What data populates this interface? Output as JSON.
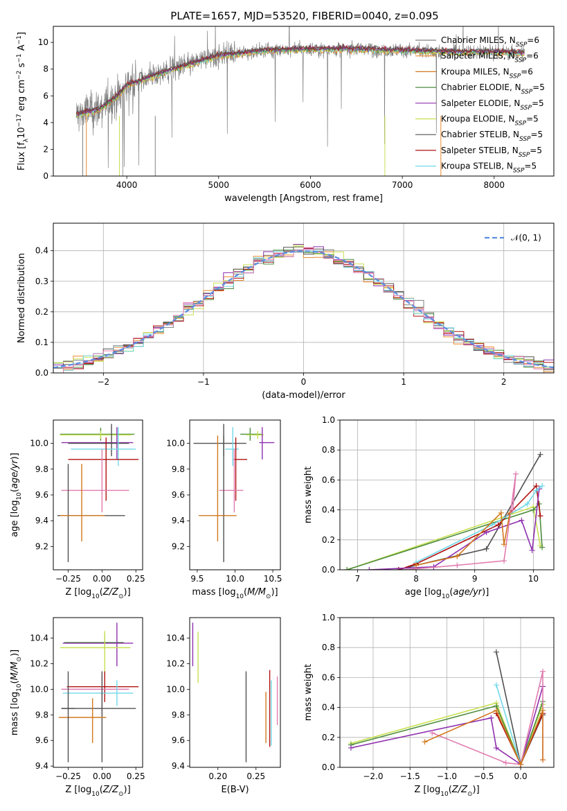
{
  "figure": {
    "title": "PLATE=1657, MJD=53520, FIBERID=0040, z=0.095"
  },
  "colors": {
    "Chabrier MILES": "#808080",
    "Salpeter MILES": "#e8882a",
    "Kroupa MILES": "#d2781e",
    "Chabrier ELODIE": "#4c8c3c",
    "Salpeter ELODIE": "#8e2fae",
    "Kroupa ELODIE": "#c8e050",
    "Chabrier STELIB": "#505050",
    "Salpeter STELIB": "#b01010",
    "Kroupa STELIB": "#70d8e8",
    "pink": "#e07aae",
    "normal": "#5b8ce0"
  },
  "chart_data": [
    {
      "id": "spectrum",
      "type": "line",
      "title": "PLATE=1657, MJD=53520, FIBERID=0040, z=0.095",
      "xlabel": "wavelength [Angstrom, rest frame]",
      "ylabel": "Flux [f_λ 10^-17 erg cm^-2 s^-1 A^-1]",
      "xlim": [
        3200,
        8650
      ],
      "ylim": [
        0,
        11.2
      ],
      "xticks": [
        4000,
        5000,
        6000,
        7000,
        8000
      ],
      "yticks": [
        0,
        2,
        4,
        6,
        8,
        10
      ],
      "legend_position": "right",
      "legend": [
        {
          "name": "Chabrier MILES",
          "sub": "SSP",
          "n": "6"
        },
        {
          "name": "Salpeter MILES",
          "sub": "SSP",
          "n": "6"
        },
        {
          "name": "Kroupa MILES",
          "sub": "SSP",
          "n": "6"
        },
        {
          "name": "Chabrier ELODIE",
          "sub": "SSP",
          "n": "5"
        },
        {
          "name": "Salpeter ELODIE",
          "sub": "SSP",
          "n": "5"
        },
        {
          "name": "Kroupa ELODIE",
          "sub": "SSP",
          "n": "5"
        },
        {
          "name": "Chabrier STELIB",
          "sub": "SSP",
          "n": "5"
        },
        {
          "name": "Salpeter STELIB",
          "sub": "SSP",
          "n": "5"
        },
        {
          "name": "Kroupa STELIB",
          "sub": "SSP",
          "n": "5"
        }
      ],
      "data_range": [
        3450,
        8330
      ],
      "continuum": [
        [
          3450,
          4.6
        ],
        [
          3700,
          5.0
        ],
        [
          3900,
          6.0
        ],
        [
          4000,
          6.8
        ],
        [
          4500,
          8.0
        ],
        [
          5000,
          9.0
        ],
        [
          5500,
          9.4
        ],
        [
          6000,
          9.5
        ],
        [
          6500,
          9.5
        ],
        [
          7000,
          9.4
        ],
        [
          7500,
          9.3
        ],
        [
          8000,
          9.3
        ],
        [
          8300,
          9.2
        ]
      ]
    },
    {
      "id": "residuals",
      "type": "histogram",
      "xlabel": "(data-model)/error",
      "ylabel": "Normed distribution",
      "xlim": [
        -2.5,
        2.5
      ],
      "ylim": [
        0,
        0.49
      ],
      "xticks": [
        -2,
        -1,
        0,
        1,
        2
      ],
      "yticks": [
        0.0,
        0.1,
        0.2,
        0.3,
        0.4
      ],
      "grid": true,
      "bin_width": 0.1,
      "legend_position": "top-right",
      "reference_curve": {
        "name": "𝒩(0, 1)",
        "style": "dashed"
      },
      "series_colors": [
        "#808080",
        "#e8882a",
        "#4c8c3c",
        "#8e2fae",
        "#c8e050",
        "#505050",
        "#b01010",
        "#70d8e8",
        "#e07aae"
      ]
    },
    {
      "id": "age-vs-Z",
      "type": "errorbar",
      "xlabel": "Z [log10(Z/Z_⊙)]",
      "ylabel": "age  [log10(age/yr)]",
      "xlim": [
        -0.36,
        0.3
      ],
      "ylim": [
        9.02,
        10.18
      ],
      "xticks": [
        -0.25,
        0.0,
        0.25
      ],
      "yticks": [
        9.2,
        9.4,
        9.6,
        9.8,
        10.0
      ],
      "points": [
        {
          "x": -0.01,
          "y": 10.07,
          "xerr": [
            0.3,
            0.25
          ],
          "yerr": [
            0.05,
            0.05
          ],
          "color": "#4c8c3c"
        },
        {
          "x": -0.01,
          "y": 10.065,
          "xerr": [
            0.3,
            0.23
          ],
          "yerr": [
            0.03,
            0.03
          ],
          "color": "#c8e050"
        },
        {
          "x": 0.11,
          "y": 10.005,
          "xerr": [
            0.41,
            0.12
          ],
          "yerr": [
            0.13,
            0.12
          ],
          "color": "#8e2fae"
        },
        {
          "x": 0.07,
          "y": 10.0,
          "xerr": [
            0.32,
            0.13
          ],
          "yerr": [
            0.1,
            0.15
          ],
          "color": "#505050"
        },
        {
          "x": 0.12,
          "y": 9.955,
          "xerr": [
            0.35,
            0.13
          ],
          "yerr": [
            0.13,
            0.17
          ],
          "color": "#70d8e8"
        },
        {
          "x": 0.03,
          "y": 9.875,
          "xerr": [
            0.28,
            0.24
          ],
          "yerr": [
            0.32,
            0.17
          ],
          "color": "#b01010"
        },
        {
          "x": 0.0,
          "y": 9.635,
          "xerr": [
            0.3,
            0.2
          ],
          "yerr": [
            0.17,
            0.32
          ],
          "color": "#e07aae"
        },
        {
          "x": -0.25,
          "y": 9.44,
          "xerr": [
            0.08,
            0.42
          ],
          "yerr": [
            0.36,
            0.4
          ],
          "color": "#505050"
        },
        {
          "x": -0.15,
          "y": 9.44,
          "xerr": [
            0.16,
            0.17
          ],
          "yerr": [
            0.2,
            0.4
          ],
          "color": "#d2781e"
        }
      ]
    },
    {
      "id": "age-vs-mass",
      "type": "errorbar",
      "xlabel": "mass [log10(M/M_⊙)]",
      "ylabel": "",
      "xlim": [
        9.4,
        10.6
      ],
      "ylim": [
        9.02,
        10.18
      ],
      "xticks": [
        9.5,
        10.0,
        10.5
      ],
      "yticks": [
        9.2,
        9.4,
        9.6,
        9.8,
        10.0
      ],
      "points": [
        {
          "x": 10.2,
          "y": 10.07,
          "xerr": [
            0.13,
            0.15
          ],
          "yerr": [
            0.05,
            0.05
          ],
          "color": "#4c8c3c"
        },
        {
          "x": 10.3,
          "y": 10.065,
          "xerr": [
            0.15,
            0.08
          ],
          "yerr": [
            0.03,
            0.03
          ],
          "color": "#c8e050"
        },
        {
          "x": 10.36,
          "y": 10.005,
          "xerr": [
            0.04,
            0.16
          ],
          "yerr": [
            0.13,
            0.12
          ],
          "color": "#8e2fae"
        },
        {
          "x": 9.85,
          "y": 10.0,
          "xerr": [
            0.4,
            0.3
          ],
          "yerr": [
            0.1,
            0.15
          ],
          "color": "#505050"
        },
        {
          "x": 9.97,
          "y": 9.955,
          "xerr": [
            0.1,
            0.08
          ],
          "yerr": [
            0.13,
            0.17
          ],
          "color": "#70d8e8"
        },
        {
          "x": 10.01,
          "y": 9.875,
          "xerr": [
            0.03,
            0.15
          ],
          "yerr": [
            0.32,
            0.17
          ],
          "color": "#b01010"
        },
        {
          "x": 9.99,
          "y": 9.635,
          "xerr": [
            0.2,
            0.12
          ],
          "yerr": [
            0.17,
            0.32
          ],
          "color": "#e07aae"
        },
        {
          "x": 9.85,
          "y": 9.44,
          "xerr": [
            0.03,
            0.03
          ],
          "yerr": [
            0.36,
            0.62
          ],
          "color": "#505050"
        },
        {
          "x": 9.77,
          "y": 9.44,
          "xerr": [
            0.25,
            0.25
          ],
          "yerr": [
            0.2,
            0.62
          ],
          "color": "#d2781e"
        }
      ]
    },
    {
      "id": "massweight-vs-age",
      "type": "line",
      "xlabel": "age  [log10(age/yr)]",
      "ylabel": "mass weight",
      "xlim": [
        6.7,
        10.35
      ],
      "ylim": [
        0,
        1.0
      ],
      "xticks": [
        7,
        8,
        9,
        10
      ],
      "yticks": [
        0.0,
        0.2,
        0.4,
        0.6,
        0.8,
        1.0
      ],
      "grid": true,
      "marker": "+",
      "series": [
        {
          "color": "#c8e050",
          "points": [
            [
              6.82,
              0.0
            ],
            [
              10.0,
              0.42
            ],
            [
              10.12,
              0.16
            ]
          ]
        },
        {
          "color": "#4c8c3c",
          "points": [
            [
              6.82,
              0.0
            ],
            [
              10.0,
              0.4
            ],
            [
              10.1,
              0.44
            ],
            [
              10.15,
              0.15
            ]
          ]
        },
        {
          "color": "#505050",
          "points": [
            [
              7.7,
              0.0
            ],
            [
              8.0,
              0.03
            ],
            [
              9.2,
              0.14
            ],
            [
              10.12,
              0.77
            ]
          ]
        },
        {
          "color": "#b01010",
          "points": [
            [
              7.7,
              0.0
            ],
            [
              8.0,
              0.04
            ],
            [
              9.4,
              0.3
            ],
            [
              10.05,
              0.56
            ],
            [
              10.12,
              0.36
            ]
          ]
        },
        {
          "color": "#8e2fae",
          "points": [
            [
              7.2,
              0.0
            ],
            [
              8.3,
              0.02
            ],
            [
              9.2,
              0.25
            ],
            [
              9.8,
              0.33
            ],
            [
              9.98,
              0.13
            ],
            [
              10.1,
              0.54
            ]
          ]
        },
        {
          "color": "#e07aae",
          "points": [
            [
              7.8,
              0.0
            ],
            [
              8.7,
              0.03
            ],
            [
              9.5,
              0.06
            ],
            [
              9.7,
              0.64
            ],
            [
              9.65,
              0.4
            ]
          ]
        },
        {
          "color": "#70d8e8",
          "points": [
            [
              8.0,
              0.05
            ],
            [
              9.3,
              0.3
            ],
            [
              9.9,
              0.44
            ],
            [
              10.05,
              0.53
            ],
            [
              10.15,
              0.56
            ]
          ]
        },
        {
          "color": "#d2781e",
          "points": [
            [
              8.0,
              0.03
            ],
            [
              8.7,
              0.09
            ],
            [
              9.45,
              0.38
            ],
            [
              9.5,
              0.17
            ],
            [
              9.6,
              0.38
            ]
          ]
        }
      ]
    },
    {
      "id": "mass-vs-Z",
      "type": "errorbar",
      "xlabel": "Z [log10(Z/Z_⊙)]",
      "ylabel": "mass [log10(M/M_⊙)]",
      "xlim": [
        -0.36,
        0.3
      ],
      "ylim": [
        9.39,
        10.56
      ],
      "xticks": [
        -0.25,
        0.0,
        0.25
      ],
      "yticks": [
        9.4,
        9.6,
        9.8,
        10.0,
        10.2,
        10.4
      ],
      "points": [
        {
          "x": 0.02,
          "y": 10.365,
          "xerr": [
            0.3,
            0.14
          ],
          "yerr": [
            0.05,
            0.07
          ],
          "color": "#4c8c3c"
        },
        {
          "x": 0.11,
          "y": 10.36,
          "xerr": [
            0.4,
            0.12
          ],
          "yerr": [
            0.18,
            0.16
          ],
          "color": "#8e2fae"
        },
        {
          "x": 0.02,
          "y": 10.325,
          "xerr": [
            0.33,
            0.19
          ],
          "yerr": [
            0.22,
            0.13
          ],
          "color": "#c8e050"
        },
        {
          "x": 0.02,
          "y": 10.02,
          "xerr": [
            0.28,
            0.25
          ],
          "yerr": [
            0.12,
            0.12
          ],
          "color": "#b01010"
        },
        {
          "x": 0.0,
          "y": 10.0,
          "xerr": [
            0.3,
            0.2
          ],
          "yerr": [
            0.2,
            0.1
          ],
          "color": "#e07aae"
        },
        {
          "x": 0.11,
          "y": 9.97,
          "xerr": [
            0.4,
            0.12
          ],
          "yerr": [
            0.1,
            0.1
          ],
          "color": "#70d8e8"
        },
        {
          "x": 0.0,
          "y": 9.85,
          "xerr": [
            0.3,
            0.25
          ],
          "yerr": [
            0.42,
            0.29
          ],
          "color": "#505050"
        },
        {
          "x": -0.07,
          "y": 9.78,
          "xerr": [
            0.25,
            0.1
          ],
          "yerr": [
            0.2,
            0.15
          ],
          "color": "#d2781e"
        },
        {
          "x": -0.25,
          "y": 9.85,
          "xerr": [
            0.05,
            0.05
          ],
          "yerr": [
            0.42,
            0.29
          ],
          "color": "#505050"
        }
      ]
    },
    {
      "id": "mass-vs-EBV",
      "type": "errorbar",
      "xlabel": "E(B-V)",
      "ylabel": "",
      "xlim": [
        0.163,
        0.282
      ],
      "ylim": [
        9.39,
        10.56
      ],
      "xticks": [
        0.2,
        0.25
      ],
      "yticks": [
        9.4,
        9.6,
        9.8,
        10.0,
        10.2,
        10.4
      ],
      "points": [
        {
          "x": 0.167,
          "y": 10.36,
          "xerr": [
            0,
            0
          ],
          "yerr": [
            0.18,
            0.16
          ],
          "color": "#8e2fae"
        },
        {
          "x": 0.174,
          "y": 10.25,
          "xerr": [
            0,
            0
          ],
          "yerr": [
            0.2,
            0.2
          ],
          "color": "#c8e050"
        },
        {
          "x": 0.237,
          "y": 9.85,
          "xerr": [
            0,
            0
          ],
          "yerr": [
            0.42,
            0.29
          ],
          "color": "#505050"
        },
        {
          "x": 0.263,
          "y": 9.78,
          "xerr": [
            0,
            0
          ],
          "yerr": [
            0.2,
            0.2
          ],
          "color": "#d2781e"
        },
        {
          "x": 0.268,
          "y": 9.95,
          "xerr": [
            0,
            0
          ],
          "yerr": [
            0.4,
            0.2
          ],
          "color": "#b01010"
        },
        {
          "x": 0.27,
          "y": 9.85,
          "xerr": [
            0,
            0
          ],
          "yerr": [
            0.29,
            0.22
          ],
          "color": "#70d8e8"
        },
        {
          "x": 0.278,
          "y": 9.92,
          "xerr": [
            0,
            0
          ],
          "yerr": [
            0.2,
            0.18
          ],
          "color": "#e07aae"
        }
      ]
    },
    {
      "id": "massweight-vs-Z",
      "type": "line",
      "xlabel": "Z [log10(Z/Z_⊙)]",
      "ylabel": "mass weight",
      "xlim": [
        -2.45,
        0.45
      ],
      "ylim": [
        0,
        1.0
      ],
      "xticks": [
        -2.0,
        -1.5,
        -1.0,
        -0.5,
        0.0
      ],
      "yticks": [
        0.0,
        0.2,
        0.4,
        0.6,
        0.8,
        1.0
      ],
      "grid": true,
      "marker": "+",
      "series": [
        {
          "color": "#c8e050",
          "points": [
            [
              -2.3,
              0.16
            ],
            [
              -0.33,
              0.43
            ],
            [
              0.0,
              0.02
            ],
            [
              0.3,
              0.42
            ]
          ]
        },
        {
          "color": "#4c8c3c",
          "points": [
            [
              -2.3,
              0.15
            ],
            [
              -0.33,
              0.41
            ],
            [
              0.0,
              0.02
            ],
            [
              0.3,
              0.44
            ]
          ]
        },
        {
          "color": "#8e2fae",
          "points": [
            [
              -2.3,
              0.13
            ],
            [
              -0.4,
              0.33
            ],
            [
              -0.33,
              0.13
            ],
            [
              0.0,
              0.02
            ],
            [
              0.3,
              0.54
            ]
          ]
        },
        {
          "color": "#505050",
          "points": [
            [
              -0.33,
              0.77
            ],
            [
              0.0,
              0.02
            ],
            [
              0.3,
              0.35
            ]
          ]
        },
        {
          "color": "#70d8e8",
          "points": [
            [
              -0.33,
              0.55
            ],
            [
              0.0,
              0.02
            ],
            [
              0.3,
              0.38
            ]
          ]
        },
        {
          "color": "#b01010",
          "points": [
            [
              -0.33,
              0.36
            ],
            [
              0.0,
              0.02
            ],
            [
              0.3,
              0.36
            ]
          ]
        },
        {
          "color": "#e07aae",
          "points": [
            [
              -1.2,
              0.23
            ],
            [
              -0.2,
              0.03
            ],
            [
              0.0,
              0.02
            ],
            [
              0.3,
              0.64
            ],
            [
              0.3,
              0.05
            ]
          ]
        },
        {
          "color": "#d2781e",
          "points": [
            [
              -1.3,
              0.17
            ],
            [
              -0.33,
              0.38
            ],
            [
              0.0,
              0.02
            ],
            [
              0.3,
              0.38
            ],
            [
              0.3,
              0.05
            ]
          ]
        }
      ]
    }
  ]
}
